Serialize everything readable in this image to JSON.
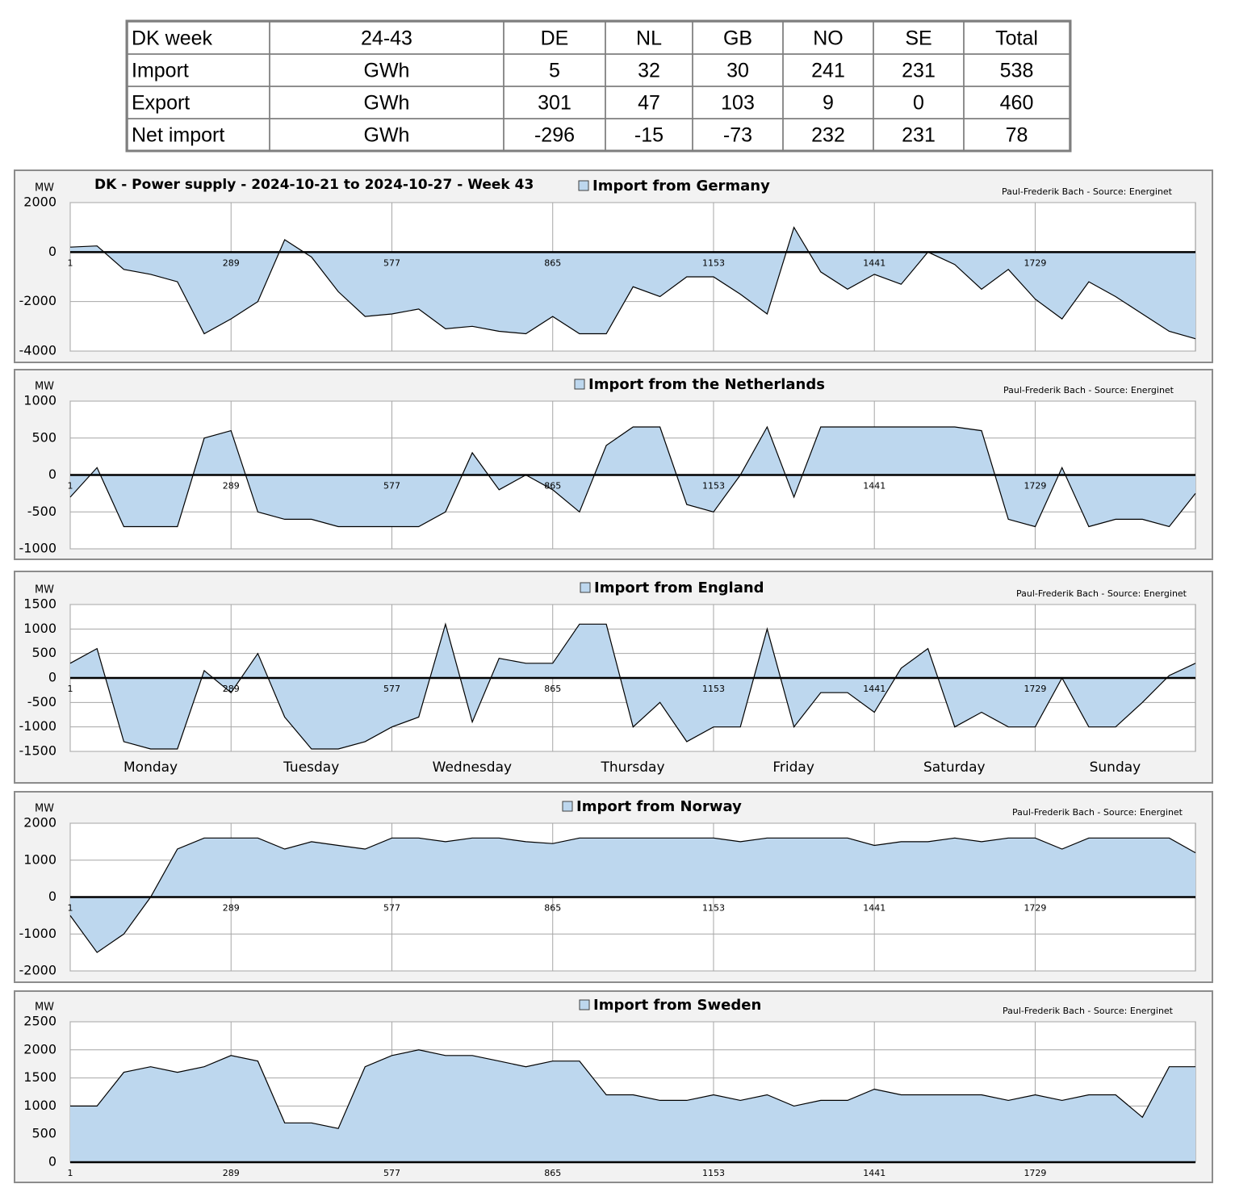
{
  "table": {
    "header": [
      "DK week",
      "24-43",
      "DE",
      "NL",
      "GB",
      "NO",
      "SE",
      "Total"
    ],
    "rows": [
      [
        "Import",
        "GWh",
        5,
        32,
        30,
        241,
        231,
        538
      ],
      [
        "Export",
        "GWh",
        301,
        47,
        103,
        9,
        0,
        460
      ],
      [
        "Net import",
        "GWh",
        -296,
        -15,
        -73,
        232,
        231,
        78
      ]
    ]
  },
  "chart_data": [
    {
      "type": "area",
      "title": "DK - Power supply - 2024-10-21 to 2024-10-27 - Week 43",
      "y_label": "MW",
      "source": "Paul-Frederik Bach - Source: Energinet",
      "x": [
        1,
        49,
        97,
        145,
        193,
        241,
        289,
        337,
        385,
        433,
        481,
        529,
        577,
        625,
        673,
        721,
        769,
        817,
        865,
        913,
        961,
        1009,
        1057,
        1105,
        1153,
        1201,
        1249,
        1297,
        1345,
        1393,
        1441,
        1489,
        1537,
        1585,
        1633,
        1681,
        1729,
        1777,
        1825,
        1873,
        1921,
        1969,
        2016
      ],
      "xlim": [
        1,
        2016
      ],
      "xticks": [
        1,
        289,
        577,
        865,
        1153,
        1441,
        1729
      ],
      "ylim": [
        -4000,
        2000
      ],
      "yticks": [
        -4000,
        -2000,
        0,
        2000
      ],
      "grid": true,
      "series": [
        {
          "name": "Import from Germany",
          "color": "#bdd7ee",
          "values": [
            200,
            250,
            -700,
            -900,
            -1200,
            -3300,
            -2700,
            -2000,
            500,
            -200,
            -1600,
            -2600,
            -2500,
            -2300,
            -3100,
            -3000,
            -3200,
            -3300,
            -2600,
            -3300,
            -3300,
            -1400,
            -1800,
            -1000,
            -1000,
            -1700,
            -2500,
            1000,
            -800,
            -1500,
            -900,
            -1300,
            0,
            -500,
            -1500,
            -700,
            -1900,
            -2700,
            -1200,
            -1800,
            -2500,
            -3200,
            -3500
          ]
        }
      ]
    },
    {
      "type": "area",
      "y_label": "MW",
      "source": "Paul-Frederik Bach - Source: Energinet",
      "x": [
        1,
        49,
        97,
        145,
        193,
        241,
        289,
        337,
        385,
        433,
        481,
        529,
        577,
        625,
        673,
        721,
        769,
        817,
        865,
        913,
        961,
        1009,
        1057,
        1105,
        1153,
        1201,
        1249,
        1297,
        1345,
        1393,
        1441,
        1489,
        1537,
        1585,
        1633,
        1681,
        1729,
        1777,
        1825,
        1873,
        1921,
        1969,
        2016
      ],
      "xlim": [
        1,
        2016
      ],
      "xticks": [
        1,
        289,
        577,
        865,
        1153,
        1441,
        1729
      ],
      "ylim": [
        -1000,
        1000
      ],
      "yticks": [
        -1000,
        -500,
        0,
        500,
        1000
      ],
      "grid": true,
      "series": [
        {
          "name": "Import from the Netherlands",
          "color": "#bdd7ee",
          "values": [
            -300,
            100,
            -700,
            -700,
            -700,
            500,
            600,
            -500,
            -600,
            -600,
            -700,
            -700,
            -700,
            -700,
            -500,
            300,
            -200,
            0,
            -200,
            -500,
            400,
            650,
            650,
            -400,
            -500,
            0,
            650,
            -300,
            650,
            650,
            650,
            650,
            650,
            650,
            600,
            -600,
            -700,
            100,
            -700,
            -600,
            -600,
            -700,
            -250
          ]
        }
      ]
    },
    {
      "type": "area",
      "y_label": "MW",
      "source": "Paul-Frederik Bach - Source: Energinet",
      "x": [
        1,
        49,
        97,
        145,
        193,
        241,
        289,
        337,
        385,
        433,
        481,
        529,
        577,
        625,
        673,
        721,
        769,
        817,
        865,
        913,
        961,
        1009,
        1057,
        1105,
        1153,
        1201,
        1249,
        1297,
        1345,
        1393,
        1441,
        1489,
        1537,
        1585,
        1633,
        1681,
        1729,
        1777,
        1825,
        1873,
        1921,
        1969,
        2016
      ],
      "xlim": [
        1,
        2016
      ],
      "xticks": [
        1,
        289,
        577,
        865,
        1153,
        1441,
        1729
      ],
      "ylim": [
        -1500,
        1500
      ],
      "yticks": [
        -1500,
        -1000,
        -500,
        0,
        500,
        1000,
        1500
      ],
      "grid": true,
      "day_labels": [
        "Monday",
        "Tuesday",
        "Wednesday",
        "Thursday",
        "Friday",
        "Saturday",
        "Sunday"
      ],
      "series": [
        {
          "name": "Import from England",
          "color": "#bdd7ee",
          "values": [
            300,
            600,
            -1300,
            -1450,
            -1450,
            150,
            -300,
            500,
            -800,
            -1450,
            -1450,
            -1300,
            -1000,
            -800,
            1100,
            -900,
            400,
            300,
            300,
            1100,
            1100,
            -1000,
            -500,
            -1300,
            -1000,
            -1000,
            1000,
            -1000,
            -300,
            -300,
            -700,
            200,
            600,
            -1000,
            -700,
            -1000,
            -1000,
            0,
            -1000,
            -1000,
            -500,
            50,
            300
          ]
        }
      ]
    },
    {
      "type": "area",
      "y_label": "MW",
      "source": "Paul-Frederik Bach - Source: Energinet",
      "x": [
        1,
        49,
        97,
        145,
        193,
        241,
        289,
        337,
        385,
        433,
        481,
        529,
        577,
        625,
        673,
        721,
        769,
        817,
        865,
        913,
        961,
        1009,
        1057,
        1105,
        1153,
        1201,
        1249,
        1297,
        1345,
        1393,
        1441,
        1489,
        1537,
        1585,
        1633,
        1681,
        1729,
        1777,
        1825,
        1873,
        1921,
        1969,
        2016
      ],
      "xlim": [
        1,
        2016
      ],
      "xticks": [
        1,
        289,
        577,
        865,
        1153,
        1441,
        1729
      ],
      "ylim": [
        -2000,
        2000
      ],
      "yticks": [
        -2000,
        -1000,
        0,
        1000,
        2000
      ],
      "grid": true,
      "series": [
        {
          "name": "Import from Norway",
          "color": "#bdd7ee",
          "values": [
            -500,
            -1500,
            -1000,
            0,
            1300,
            1600,
            1600,
            1600,
            1300,
            1500,
            1400,
            1300,
            1600,
            1600,
            1500,
            1600,
            1600,
            1500,
            1450,
            1600,
            1600,
            1600,
            1600,
            1600,
            1600,
            1500,
            1600,
            1600,
            1600,
            1600,
            1400,
            1500,
            1500,
            1600,
            1500,
            1600,
            1600,
            1300,
            1600,
            1600,
            1600,
            1600,
            1200
          ]
        }
      ]
    },
    {
      "type": "area",
      "y_label": "MW",
      "source": "Paul-Frederik Bach - Source: Energinet",
      "x": [
        1,
        49,
        97,
        145,
        193,
        241,
        289,
        337,
        385,
        433,
        481,
        529,
        577,
        625,
        673,
        721,
        769,
        817,
        865,
        913,
        961,
        1009,
        1057,
        1105,
        1153,
        1201,
        1249,
        1297,
        1345,
        1393,
        1441,
        1489,
        1537,
        1585,
        1633,
        1681,
        1729,
        1777,
        1825,
        1873,
        1921,
        1969,
        2016
      ],
      "xlim": [
        1,
        2016
      ],
      "xticks": [
        1,
        289,
        577,
        865,
        1153,
        1441,
        1729
      ],
      "ylim": [
        0,
        2500
      ],
      "yticks": [
        0,
        500,
        1000,
        1500,
        2000,
        2500
      ],
      "grid": true,
      "series": [
        {
          "name": "Import from Sweden",
          "color": "#bdd7ee",
          "values": [
            1000,
            1000,
            1600,
            1700,
            1600,
            1700,
            1900,
            1800,
            700,
            700,
            600,
            1700,
            1900,
            2000,
            1900,
            1900,
            1800,
            1700,
            1800,
            1800,
            1200,
            1200,
            1100,
            1100,
            1200,
            1100,
            1200,
            1000,
            1100,
            1100,
            1300,
            1200,
            1200,
            1200,
            1200,
            1100,
            1200,
            1100,
            1200,
            1200,
            800,
            1700,
            1700
          ]
        }
      ]
    }
  ]
}
